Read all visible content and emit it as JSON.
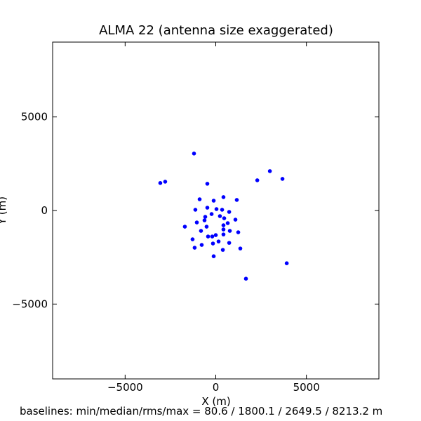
{
  "chart_data": {
    "type": "scatter",
    "title": "ALMA 22 (antenna size exaggerated)",
    "xlabel": "X (m)",
    "ylabel": "Y (m)",
    "footer": "baselines: min/median/rms/max = 80.6 / 1800.1 / 2649.5 / 8213.2 m",
    "color": "#0000ff",
    "xlim": [
      -9000,
      9000
    ],
    "ylim": [
      -9000,
      9000
    ],
    "xticks": [
      {
        "value": -5000,
        "label": "−5000"
      },
      0,
      5000
    ],
    "yticks": [
      {
        "value": -5000,
        "label": "−5000"
      },
      0,
      5000
    ],
    "x": [
      -1200,
      -2790,
      -3060,
      -465,
      2985,
      2290,
      3680,
      -890,
      425,
      1160,
      -115,
      -1125,
      -465,
      40,
      350,
      740,
      -230,
      -580,
      230,
      465,
      -620,
      1085,
      -1045,
      660,
      425,
      -1705,
      -505,
      425,
      -815,
      775,
      1240,
      425,
      0,
      -425,
      -195,
      -1280,
      155,
      -155,
      740,
      -775,
      -1165,
      1355,
      390,
      -115,
      3915,
      1665
    ],
    "values": [
      3045,
      1540,
      1470,
      1430,
      2105,
      1615,
      1690,
      600,
      715,
      565,
      525,
      40,
      150,
      75,
      40,
      -75,
      -190,
      -340,
      -300,
      -415,
      -525,
      -490,
      -640,
      -675,
      -790,
      -865,
      -865,
      -1015,
      -1090,
      -1090,
      -1165,
      -1280,
      -1315,
      -1390,
      -1390,
      -1540,
      -1655,
      -1765,
      -1730,
      -1840,
      -1990,
      -2030,
      -2105,
      -2445,
      -2820,
      -3645
    ]
  }
}
